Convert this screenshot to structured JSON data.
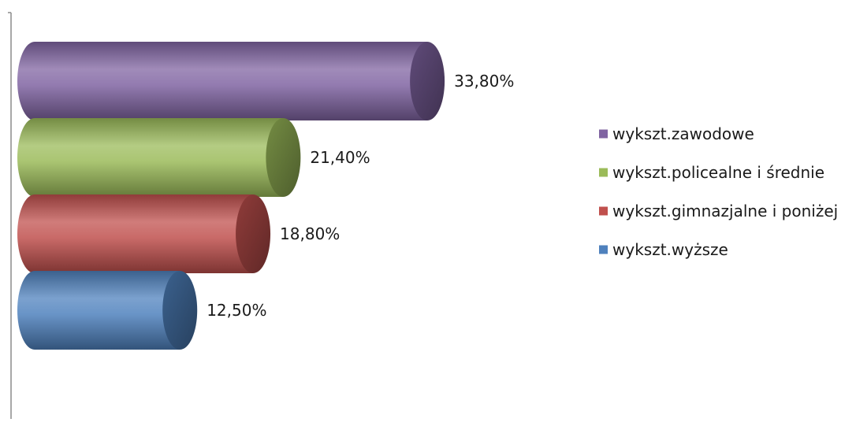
{
  "chart_data": {
    "type": "bar",
    "orientation": "horizontal",
    "style": "3d-cylinder",
    "categories": [
      "wykszt.zawodowe",
      "wykszt.policealne i średnie",
      "wykszt.gimnazjalne i poniżej",
      "wykszt.wyższe"
    ],
    "values": [
      33.8,
      21.4,
      18.8,
      12.5
    ],
    "data_labels": [
      "33,80%",
      "21,40%",
      "18,80%",
      "12,50%"
    ],
    "colors": [
      "#8064A2",
      "#9BBB59",
      "#C0504D",
      "#4F81BD"
    ],
    "legend": {
      "placement": "right",
      "entries": [
        "wykszt.zawodowe",
        "wykszt.policealne i średnie",
        "wykszt.gimnazjalne i poniżej",
        "wykszt.wyższe"
      ]
    },
    "xlim": [
      0,
      38
    ],
    "grid": false
  }
}
